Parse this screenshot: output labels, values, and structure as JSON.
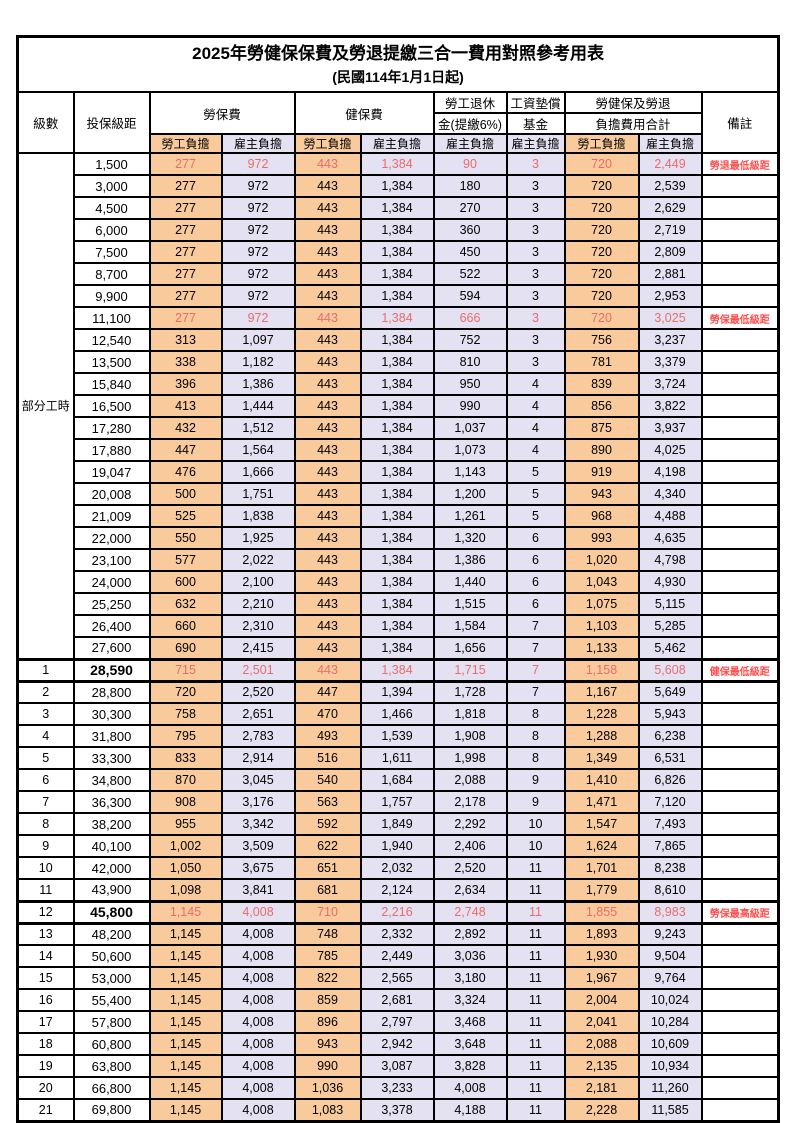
{
  "title": "2025年勞健保保費及勞退提繳三合一費用對照參考用表",
  "subtitle": "(民國114年1月1日起)",
  "colors": {
    "employee_column_bg": "#F9CB9C",
    "employer_column_bg": "#E4E2F2",
    "highlight_value_text": "#EA6B6B",
    "remark_text": "#FF5050",
    "grid_line": "#000000"
  },
  "columns": {
    "level": "級數",
    "bracket": "投保級距",
    "labor_insurance": "勞保費",
    "health_insurance": "健保費",
    "pension_line1": "勞工退休",
    "pension_line2": "金(提繳6%)",
    "wage_fund_line1": "工資墊償",
    "wage_fund_line2": "基金",
    "total_line1": "勞健保及勞退",
    "total_line2": "負擔費用合計",
    "remark": "備註",
    "employee_share": "勞工負擔",
    "employer_share": "雇主負擔"
  },
  "part_time_label": "部分工時",
  "part_time_rowspan": 23,
  "rows": [
    {
      "level": "",
      "bracket": "1,500",
      "values": [
        "277",
        "972",
        "443",
        "1,384",
        "90",
        "3",
        "720",
        "2,449"
      ],
      "remark": "勞退最低級距",
      "highlight": true,
      "emphasis": false
    },
    {
      "level": "",
      "bracket": "3,000",
      "values": [
        "277",
        "972",
        "443",
        "1,384",
        "180",
        "3",
        "720",
        "2,539"
      ],
      "remark": "",
      "highlight": false,
      "emphasis": false
    },
    {
      "level": "",
      "bracket": "4,500",
      "values": [
        "277",
        "972",
        "443",
        "1,384",
        "270",
        "3",
        "720",
        "2,629"
      ],
      "remark": "",
      "highlight": false,
      "emphasis": false
    },
    {
      "level": "",
      "bracket": "6,000",
      "values": [
        "277",
        "972",
        "443",
        "1,384",
        "360",
        "3",
        "720",
        "2,719"
      ],
      "remark": "",
      "highlight": false,
      "emphasis": false
    },
    {
      "level": "",
      "bracket": "7,500",
      "values": [
        "277",
        "972",
        "443",
        "1,384",
        "450",
        "3",
        "720",
        "2,809"
      ],
      "remark": "",
      "highlight": false,
      "emphasis": false
    },
    {
      "level": "",
      "bracket": "8,700",
      "values": [
        "277",
        "972",
        "443",
        "1,384",
        "522",
        "3",
        "720",
        "2,881"
      ],
      "remark": "",
      "highlight": false,
      "emphasis": false
    },
    {
      "level": "",
      "bracket": "9,900",
      "values": [
        "277",
        "972",
        "443",
        "1,384",
        "594",
        "3",
        "720",
        "2,953"
      ],
      "remark": "",
      "highlight": false,
      "emphasis": false
    },
    {
      "level": "",
      "bracket": "11,100",
      "values": [
        "277",
        "972",
        "443",
        "1,384",
        "666",
        "3",
        "720",
        "3,025"
      ],
      "remark": "勞保最低級距",
      "highlight": true,
      "emphasis": false
    },
    {
      "level": "",
      "bracket": "12,540",
      "values": [
        "313",
        "1,097",
        "443",
        "1,384",
        "752",
        "3",
        "756",
        "3,237"
      ],
      "remark": "",
      "highlight": false,
      "emphasis": false
    },
    {
      "level": "",
      "bracket": "13,500",
      "values": [
        "338",
        "1,182",
        "443",
        "1,384",
        "810",
        "3",
        "781",
        "3,379"
      ],
      "remark": "",
      "highlight": false,
      "emphasis": false
    },
    {
      "level": "",
      "bracket": "15,840",
      "values": [
        "396",
        "1,386",
        "443",
        "1,384",
        "950",
        "4",
        "839",
        "3,724"
      ],
      "remark": "",
      "highlight": false,
      "emphasis": false
    },
    {
      "level": "",
      "bracket": "16,500",
      "values": [
        "413",
        "1,444",
        "443",
        "1,384",
        "990",
        "4",
        "856",
        "3,822"
      ],
      "remark": "",
      "highlight": false,
      "emphasis": false
    },
    {
      "level": "",
      "bracket": "17,280",
      "values": [
        "432",
        "1,512",
        "443",
        "1,384",
        "1,037",
        "4",
        "875",
        "3,937"
      ],
      "remark": "",
      "highlight": false,
      "emphasis": false
    },
    {
      "level": "",
      "bracket": "17,880",
      "values": [
        "447",
        "1,564",
        "443",
        "1,384",
        "1,073",
        "4",
        "890",
        "4,025"
      ],
      "remark": "",
      "highlight": false,
      "emphasis": false
    },
    {
      "level": "",
      "bracket": "19,047",
      "values": [
        "476",
        "1,666",
        "443",
        "1,384",
        "1,143",
        "5",
        "919",
        "4,198"
      ],
      "remark": "",
      "highlight": false,
      "emphasis": false
    },
    {
      "level": "",
      "bracket": "20,008",
      "values": [
        "500",
        "1,751",
        "443",
        "1,384",
        "1,200",
        "5",
        "943",
        "4,340"
      ],
      "remark": "",
      "highlight": false,
      "emphasis": false
    },
    {
      "level": "",
      "bracket": "21,009",
      "values": [
        "525",
        "1,838",
        "443",
        "1,384",
        "1,261",
        "5",
        "968",
        "4,488"
      ],
      "remark": "",
      "highlight": false,
      "emphasis": false
    },
    {
      "level": "",
      "bracket": "22,000",
      "values": [
        "550",
        "1,925",
        "443",
        "1,384",
        "1,320",
        "6",
        "993",
        "4,635"
      ],
      "remark": "",
      "highlight": false,
      "emphasis": false
    },
    {
      "level": "",
      "bracket": "23,100",
      "values": [
        "577",
        "2,022",
        "443",
        "1,384",
        "1,386",
        "6",
        "1,020",
        "4,798"
      ],
      "remark": "",
      "highlight": false,
      "emphasis": false
    },
    {
      "level": "",
      "bracket": "24,000",
      "values": [
        "600",
        "2,100",
        "443",
        "1,384",
        "1,440",
        "6",
        "1,043",
        "4,930"
      ],
      "remark": "",
      "highlight": false,
      "emphasis": false
    },
    {
      "level": "",
      "bracket": "25,250",
      "values": [
        "632",
        "2,210",
        "443",
        "1,384",
        "1,515",
        "6",
        "1,075",
        "5,115"
      ],
      "remark": "",
      "highlight": false,
      "emphasis": false
    },
    {
      "level": "",
      "bracket": "26,400",
      "values": [
        "660",
        "2,310",
        "443",
        "1,384",
        "1,584",
        "7",
        "1,103",
        "5,285"
      ],
      "remark": "",
      "highlight": false,
      "emphasis": false
    },
    {
      "level": "",
      "bracket": "27,600",
      "values": [
        "690",
        "2,415",
        "443",
        "1,384",
        "1,656",
        "7",
        "1,133",
        "5,462"
      ],
      "remark": "",
      "highlight": false,
      "emphasis": false
    },
    {
      "level": "1",
      "bracket": "28,590",
      "values": [
        "715",
        "2,501",
        "443",
        "1,384",
        "1,715",
        "7",
        "1,158",
        "5,608"
      ],
      "remark": "健保最低級距",
      "highlight": true,
      "emphasis": true
    },
    {
      "level": "2",
      "bracket": "28,800",
      "values": [
        "720",
        "2,520",
        "447",
        "1,394",
        "1,728",
        "7",
        "1,167",
        "5,649"
      ],
      "remark": "",
      "highlight": false,
      "emphasis": false
    },
    {
      "level": "3",
      "bracket": "30,300",
      "values": [
        "758",
        "2,651",
        "470",
        "1,466",
        "1,818",
        "8",
        "1,228",
        "5,943"
      ],
      "remark": "",
      "highlight": false,
      "emphasis": false
    },
    {
      "level": "4",
      "bracket": "31,800",
      "values": [
        "795",
        "2,783",
        "493",
        "1,539",
        "1,908",
        "8",
        "1,288",
        "6,238"
      ],
      "remark": "",
      "highlight": false,
      "emphasis": false
    },
    {
      "level": "5",
      "bracket": "33,300",
      "values": [
        "833",
        "2,914",
        "516",
        "1,611",
        "1,998",
        "8",
        "1,349",
        "6,531"
      ],
      "remark": "",
      "highlight": false,
      "emphasis": false
    },
    {
      "level": "6",
      "bracket": "34,800",
      "values": [
        "870",
        "3,045",
        "540",
        "1,684",
        "2,088",
        "9",
        "1,410",
        "6,826"
      ],
      "remark": "",
      "highlight": false,
      "emphasis": false
    },
    {
      "level": "7",
      "bracket": "36,300",
      "values": [
        "908",
        "3,176",
        "563",
        "1,757",
        "2,178",
        "9",
        "1,471",
        "7,120"
      ],
      "remark": "",
      "highlight": false,
      "emphasis": false
    },
    {
      "level": "8",
      "bracket": "38,200",
      "values": [
        "955",
        "3,342",
        "592",
        "1,849",
        "2,292",
        "10",
        "1,547",
        "7,493"
      ],
      "remark": "",
      "highlight": false,
      "emphasis": false
    },
    {
      "level": "9",
      "bracket": "40,100",
      "values": [
        "1,002",
        "3,509",
        "622",
        "1,940",
        "2,406",
        "10",
        "1,624",
        "7,865"
      ],
      "remark": "",
      "highlight": false,
      "emphasis": false
    },
    {
      "level": "10",
      "bracket": "42,000",
      "values": [
        "1,050",
        "3,675",
        "651",
        "2,032",
        "2,520",
        "11",
        "1,701",
        "8,238"
      ],
      "remark": "",
      "highlight": false,
      "emphasis": false
    },
    {
      "level": "11",
      "bracket": "43,900",
      "values": [
        "1,098",
        "3,841",
        "681",
        "2,124",
        "2,634",
        "11",
        "1,779",
        "8,610"
      ],
      "remark": "",
      "highlight": false,
      "emphasis": false
    },
    {
      "level": "12",
      "bracket": "45,800",
      "values": [
        "1,145",
        "4,008",
        "710",
        "2,216",
        "2,748",
        "11",
        "1,855",
        "8,983"
      ],
      "remark": "勞保最高級距",
      "highlight": true,
      "emphasis": true
    },
    {
      "level": "13",
      "bracket": "48,200",
      "values": [
        "1,145",
        "4,008",
        "748",
        "2,332",
        "2,892",
        "11",
        "1,893",
        "9,243"
      ],
      "remark": "",
      "highlight": false,
      "emphasis": false
    },
    {
      "level": "14",
      "bracket": "50,600",
      "values": [
        "1,145",
        "4,008",
        "785",
        "2,449",
        "3,036",
        "11",
        "1,930",
        "9,504"
      ],
      "remark": "",
      "highlight": false,
      "emphasis": false
    },
    {
      "level": "15",
      "bracket": "53,000",
      "values": [
        "1,145",
        "4,008",
        "822",
        "2,565",
        "3,180",
        "11",
        "1,967",
        "9,764"
      ],
      "remark": "",
      "highlight": false,
      "emphasis": false
    },
    {
      "level": "16",
      "bracket": "55,400",
      "values": [
        "1,145",
        "4,008",
        "859",
        "2,681",
        "3,324",
        "11",
        "2,004",
        "10,024"
      ],
      "remark": "",
      "highlight": false,
      "emphasis": false
    },
    {
      "level": "17",
      "bracket": "57,800",
      "values": [
        "1,145",
        "4,008",
        "896",
        "2,797",
        "3,468",
        "11",
        "2,041",
        "10,284"
      ],
      "remark": "",
      "highlight": false,
      "emphasis": false
    },
    {
      "level": "18",
      "bracket": "60,800",
      "values": [
        "1,145",
        "4,008",
        "943",
        "2,942",
        "3,648",
        "11",
        "2,088",
        "10,609"
      ],
      "remark": "",
      "highlight": false,
      "emphasis": false
    },
    {
      "level": "19",
      "bracket": "63,800",
      "values": [
        "1,145",
        "4,008",
        "990",
        "3,087",
        "3,828",
        "11",
        "2,135",
        "10,934"
      ],
      "remark": "",
      "highlight": false,
      "emphasis": false
    },
    {
      "level": "20",
      "bracket": "66,800",
      "values": [
        "1,145",
        "4,008",
        "1,036",
        "3,233",
        "4,008",
        "11",
        "2,181",
        "11,260"
      ],
      "remark": "",
      "highlight": false,
      "emphasis": false
    },
    {
      "level": "21",
      "bracket": "69,800",
      "values": [
        "1,145",
        "4,008",
        "1,083",
        "3,378",
        "4,188",
        "11",
        "2,228",
        "11,585"
      ],
      "remark": "",
      "highlight": false,
      "emphasis": false
    }
  ]
}
